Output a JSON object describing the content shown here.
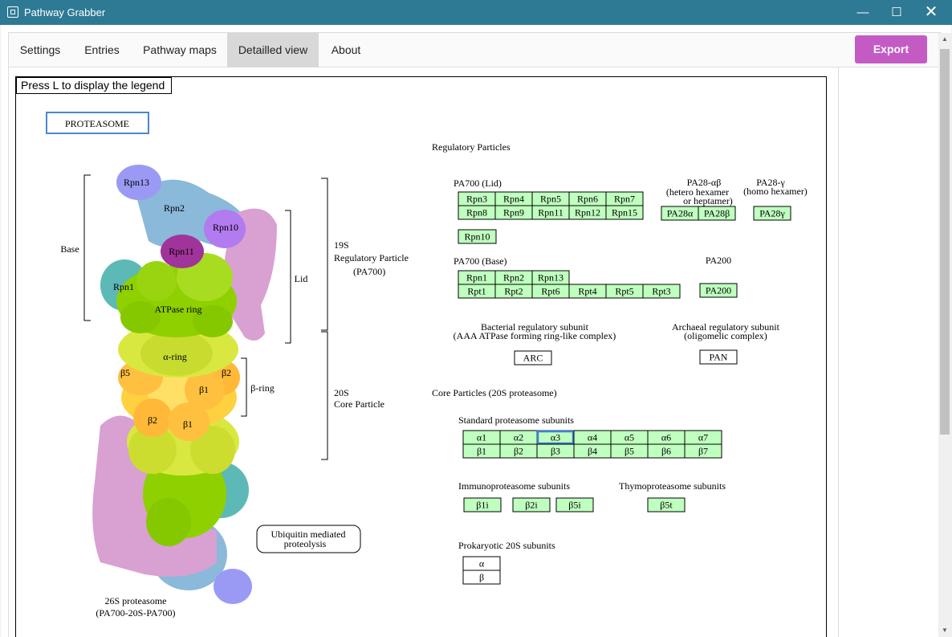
{
  "window": {
    "title": "Pathway Grabber",
    "minimize": "—",
    "maximize": "☐",
    "close": "✕",
    "icon": "app-grid-icon"
  },
  "tabs": [
    "Settings",
    "Entries",
    "Pathway maps",
    "Detailled view",
    "About"
  ],
  "active_tab": "Detailled view",
  "export_label": "Export",
  "legend_hint": "Press L to display the legend",
  "map": {
    "title": "PROTEASOME",
    "regulatory_heading": "Regulatory Particles",
    "pa700_lid_label": "PA700 (Lid)",
    "pa700_lid_row1": [
      "Rpn3",
      "Rpn4",
      "Rpn5",
      "Rpn6",
      "Rpn7"
    ],
    "pa700_lid_row2": [
      "Rpn8",
      "Rpn9",
      "Rpn11",
      "Rpn12",
      "Rpn15"
    ],
    "pa700_lid_extra": "Rpn10",
    "pa28ab_label": "PA28-αβ",
    "pa28ab_sub1": "(hetero hexamer",
    "pa28ab_sub2": "or heptamer)",
    "pa28ab_genes": [
      "PA28α",
      "PA28β"
    ],
    "pa28g_label": "PA28-γ",
    "pa28g_sub": "(homo hexamer)",
    "pa28g_gene": "PA28γ",
    "pa700_base_label": "PA700 (Base)",
    "pa700_base_row1": [
      "Rpn1",
      "Rpn2",
      "Rpn13"
    ],
    "pa700_base_row2": [
      "Rpt1",
      "Rpt2",
      "Rpt6",
      "Rpt4",
      "Rpt5",
      "Rpt3"
    ],
    "pa200_label": "PA200",
    "pa200_gene": "PA200",
    "bacterial_label1": "Bacterial regulatory subunit",
    "bacterial_label2": "(AAA ATPase forming ring-like complex)",
    "arc_gene": "ARC",
    "archaeal_label1": "Archaeal regulatory subunit",
    "archaeal_label2": "(oligomelic complex)",
    "pan_gene": "PAN",
    "core_heading": "Core Particles (20S proteasome)",
    "standard_label": "Standard proteasome subunits",
    "alpha_row": [
      "α1",
      "α2",
      "α3",
      "α4",
      "α5",
      "α6",
      "α7"
    ],
    "beta_row": [
      "β1",
      "β2",
      "β3",
      "β4",
      "β5",
      "β6",
      "β7"
    ],
    "selected_gene": "α3",
    "immuno_label": "Immunoproteasome subunits",
    "immuno_genes": [
      "β1i",
      "β2i",
      "β5i"
    ],
    "thymo_label": "Thymoproteasome subunits",
    "thymo_gene": "β5t",
    "prok_label": "Prokaryotic 20S subunits",
    "prok_genes": [
      "α",
      "β"
    ],
    "ubiquitin_line1": "Ubiquitin mediated",
    "ubiquitin_line2": "proteolysis",
    "figure": {
      "rpn13": "Rpn13",
      "rpn2": "Rpn2",
      "rpn10": "Rpn10",
      "rpn11": "Rpn11",
      "rpn1": "Rpn1",
      "atpase": "ATPase ring",
      "alpha_ring": "α-ring",
      "b5": "β5",
      "b2a": "β2",
      "b1a": "β1",
      "b2b": "β2",
      "b1b": "β1",
      "beta_ring": "β-ring",
      "base": "Base",
      "lid": "Lid",
      "p19s_1": "19S",
      "p19s_2": "Regulatory Particle",
      "p19s_3": "(PA700)",
      "p20s_1": "20S",
      "p20s_2": "Core Particle",
      "caption1": "26S proteasome",
      "caption2": "(PA700-20S-PA700)"
    }
  },
  "colors": {
    "titlebar": "#2e7a94",
    "export": "#c45bc5",
    "gene_fill": "#bfffbf",
    "active_tab": "#d8d8d8",
    "lid_pink": "#d9a0d2",
    "rpn2_blue": "#8ab9da",
    "rpn13_violet": "#9a9af5",
    "rpn10_violet": "#b27bef",
    "rpn11_magenta": "#a0349a",
    "rpn1_teal": "#5db9b6",
    "atpase_green": "#8fd000",
    "alpha_yellow": "#d9e840",
    "beta_orange": "#ffc040"
  }
}
